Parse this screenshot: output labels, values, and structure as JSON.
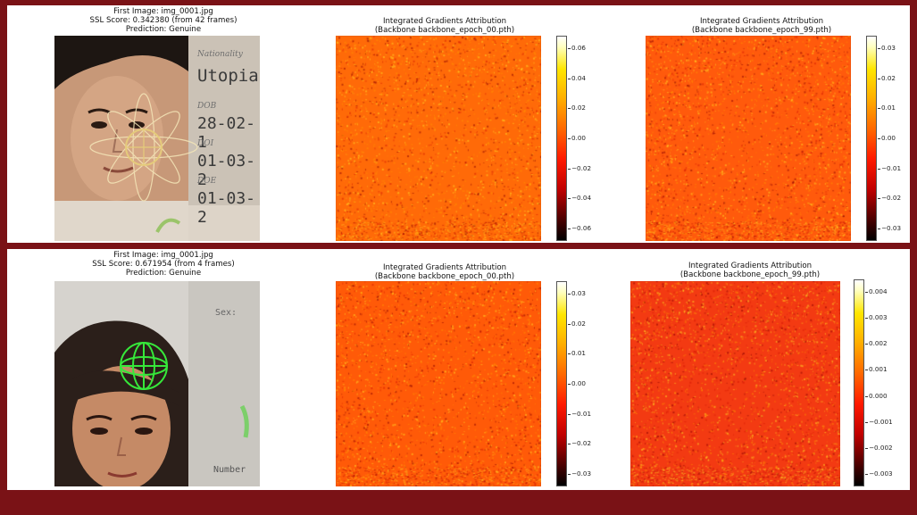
{
  "rows": [
    {
      "caption": [
        "First Image: img_0001.jpg",
        "SSL Score: 0.342380 (from 42 frames)",
        "Prediction: Genuine"
      ],
      "photo": {
        "labels": [
          "Nationality",
          "Utopia",
          "DOB",
          "28-02-1",
          "DOI",
          "01-03-2",
          "DOE",
          "01-03-2"
        ]
      },
      "maps": [
        {
          "title": [
            "Integrated Gradients Attribution",
            "(Backbone backbone_epoch_00.pth)"
          ],
          "ticks": [
            "0.06",
            "0.04",
            "0.02",
            "0.00",
            "−0.02",
            "−0.04",
            "−0.06"
          ]
        },
        {
          "title": [
            "Integrated Gradients Attribution",
            "(Backbone backbone_epoch_99.pth)"
          ],
          "ticks": [
            "0.03",
            "0.02",
            "0.01",
            "0.00",
            "−0.01",
            "−0.02",
            "−0.03"
          ]
        }
      ]
    },
    {
      "caption": [
        "First Image: img_0001.jpg",
        "SSL Score: 0.671954 (from 4 frames)",
        "Prediction: Genuine"
      ],
      "photo": {
        "labels": [
          "Sex:",
          "Number"
        ]
      },
      "maps": [
        {
          "title": [
            "Integrated Gradients Attribution",
            "(Backbone backbone_epoch_00.pth)"
          ],
          "ticks": [
            "0.03",
            "0.02",
            "0.01",
            "0.00",
            "−0.01",
            "−0.02",
            "−0.03"
          ]
        },
        {
          "title": [
            "Integrated Gradients Attribution",
            "(Backbone backbone_epoch_99.pth)"
          ],
          "ticks": [
            "0.004",
            "0.003",
            "0.002",
            "0.001",
            "0.000",
            "−0.001",
            "−0.002",
            "−0.003"
          ]
        }
      ]
    }
  ],
  "colors": {
    "frame": "#7a1216",
    "heat_base_a": "#ff6a0a",
    "heat_base_b": "#ff3a10"
  },
  "icons": [
    "hologram-flower-icon",
    "hologram-globe-icon"
  ]
}
